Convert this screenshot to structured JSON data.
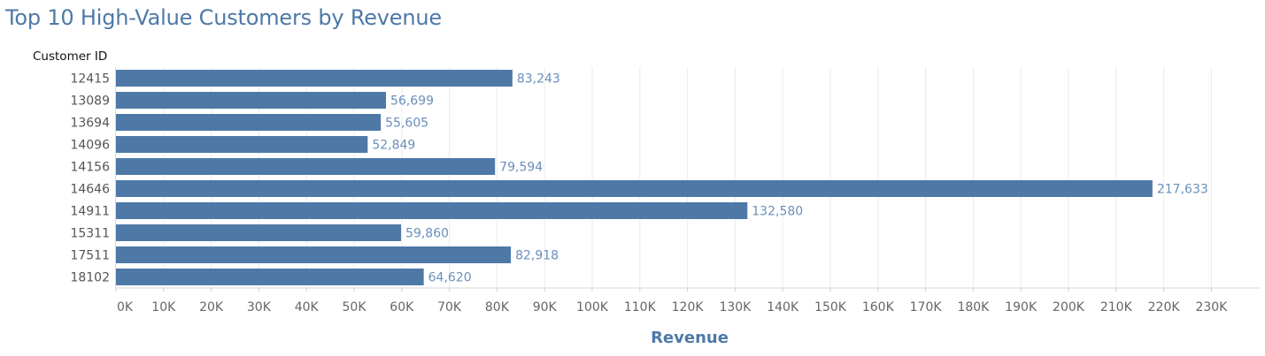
{
  "chart_data": {
    "type": "bar",
    "orientation": "horizontal",
    "title": "Top 10 High-Value Customers by Revenue",
    "ylabel": "Customer ID",
    "xlabel": "Revenue",
    "categories": [
      "12415",
      "13089",
      "13694",
      "14096",
      "14156",
      "14646",
      "14911",
      "15311",
      "17511",
      "18102"
    ],
    "values": [
      83243,
      56699,
      55605,
      52849,
      79594,
      217633,
      132580,
      59860,
      82918,
      64620
    ],
    "data_labels": [
      "83,243",
      "56,699",
      "55,605",
      "52,849",
      "79,594",
      "217,633",
      "132,580",
      "59,860",
      "82,918",
      "64,620"
    ],
    "xlim": [
      0,
      240000
    ],
    "x_ticks": [
      0,
      10000,
      20000,
      30000,
      40000,
      50000,
      60000,
      70000,
      80000,
      90000,
      100000,
      110000,
      120000,
      130000,
      140000,
      150000,
      160000,
      170000,
      180000,
      190000,
      200000,
      210000,
      220000,
      230000
    ],
    "x_tick_labels": [
      "0K",
      "10K",
      "20K",
      "30K",
      "40K",
      "50K",
      "60K",
      "70K",
      "80K",
      "90K",
      "100K",
      "110K",
      "120K",
      "130K",
      "140K",
      "150K",
      "160K",
      "170K",
      "180K",
      "190K",
      "200K",
      "210K",
      "220K",
      "230K"
    ],
    "grid": true,
    "bar_color": "#4e79a7",
    "label_color": "#6a8fba"
  }
}
